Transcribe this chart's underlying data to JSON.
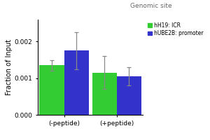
{
  "title": "Genomic site",
  "ylabel": "Fraction of Input",
  "xlabel_groups": [
    "(-peptide)",
    "(+peptide)"
  ],
  "legend_labels": [
    "hH19: ICR",
    "hUBE2B: promoter"
  ],
  "bar_colors": [
    "#33cc33",
    "#3333cc"
  ],
  "bar_values": {
    "minus_peptide": [
      0.00135,
      0.00175
    ],
    "plus_peptide": [
      0.00115,
      0.00105
    ]
  },
  "bar_errors": {
    "minus_peptide": [
      0.00015,
      0.0005
    ],
    "plus_peptide": [
      0.00045,
      0.00025
    ]
  },
  "ylim": [
    0.0,
    0.0026
  ],
  "yticks": [
    0.0,
    0.001,
    0.002
  ],
  "ytick_labels": [
    "0.000",
    "0.001",
    "0.002"
  ],
  "background_color": "#ffffff",
  "plot_bg_color": "#ffffff",
  "bar_width": 0.28,
  "title_fontsize": 6.5,
  "legend_fontsize": 5.5,
  "axis_fontsize": 7,
  "tick_fontsize": 6.5,
  "ylabel_fontsize": 7
}
